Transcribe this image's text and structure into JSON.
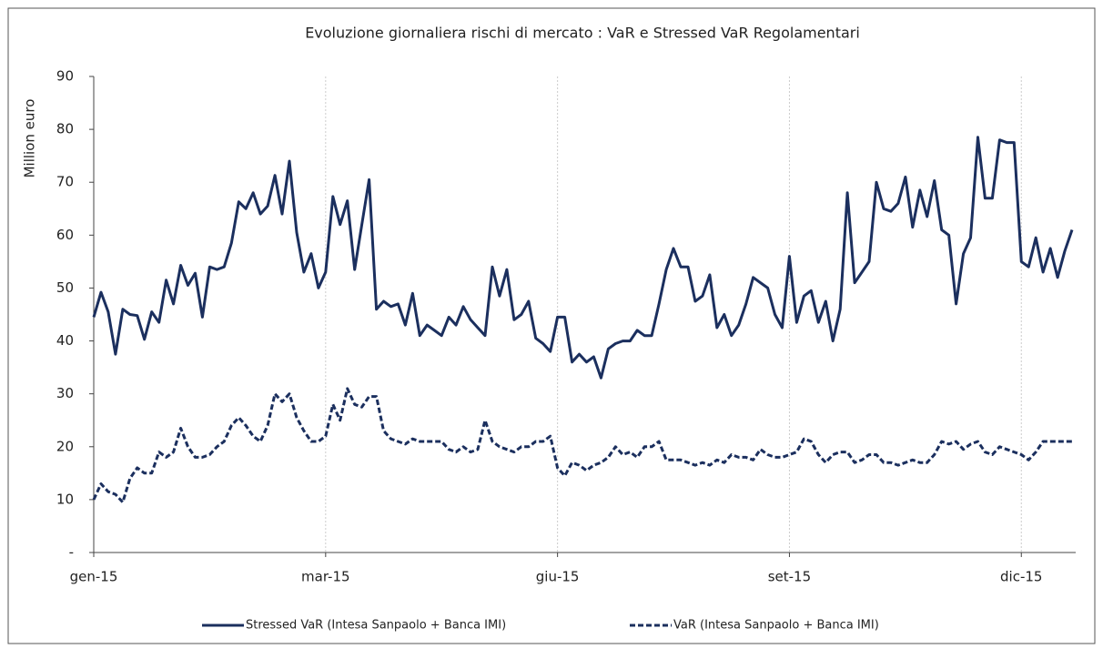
{
  "chart_data": {
    "type": "line",
    "title": "Evoluzione giornaliera rischi di mercato : VaR e Stressed VaR Regolamentari",
    "y_label": "Million euro",
    "categories": [
      "gen-15",
      null,
      null,
      null,
      null,
      null,
      null,
      null,
      null,
      null,
      null,
      null,
      null,
      null,
      null,
      null,
      null,
      null,
      null,
      null,
      null,
      null,
      null,
      null,
      null,
      null,
      null,
      null,
      null,
      null,
      null,
      null,
      "mar-15",
      null,
      null,
      null,
      null,
      null,
      null,
      null,
      null,
      null,
      null,
      null,
      null,
      null,
      null,
      null,
      null,
      null,
      null,
      null,
      null,
      null,
      null,
      null,
      null,
      null,
      null,
      null,
      null,
      null,
      null,
      null,
      "giu-15",
      null,
      null,
      null,
      null,
      null,
      null,
      null,
      null,
      null,
      null,
      null,
      null,
      null,
      null,
      null,
      null,
      null,
      null,
      null,
      null,
      null,
      null,
      null,
      null,
      null,
      null,
      null,
      null,
      null,
      null,
      null,
      "set-15",
      null,
      null,
      null,
      null,
      null,
      null,
      null,
      null,
      null,
      null,
      null,
      null,
      null,
      null,
      null,
      null,
      null,
      null,
      null,
      null,
      null,
      null,
      null,
      null,
      null,
      null,
      null,
      null,
      null,
      null,
      null,
      "dic-15",
      null,
      null,
      null,
      null,
      null,
      null,
      null
    ],
    "series": [
      {
        "name": "Stressed VaR (Intesa Sanpaolo + Banca IMI)",
        "color": "#1b2f5e",
        "dashed": false,
        "values": [
          44.5,
          49.2,
          45.5,
          37.5,
          46,
          45,
          44.8,
          40.3,
          45.5,
          43.5,
          51.5,
          47,
          54.3,
          50.5,
          52.8,
          44.5,
          54,
          53.5,
          54,
          58.5,
          66.3,
          65,
          68,
          64,
          65.5,
          71.3,
          64,
          74,
          60.5,
          53,
          56.5,
          50,
          53,
          67.3,
          62,
          66.5,
          53.5,
          62,
          70.5,
          46,
          47.5,
          46.5,
          47,
          43,
          49,
          41,
          43,
          42,
          41,
          44.5,
          43,
          46.5,
          44,
          42.5,
          41,
          54,
          48.5,
          53.5,
          44,
          45,
          47.5,
          40.5,
          39.5,
          38,
          44.5,
          44.5,
          36,
          37.5,
          36,
          37,
          33,
          38.5,
          39.5,
          40,
          40,
          42,
          41,
          41,
          47,
          53.5,
          57.5,
          54,
          54,
          47.5,
          48.5,
          52.5,
          42.5,
          45,
          41,
          43,
          47,
          52,
          51,
          50,
          45,
          42.5,
          56,
          43.5,
          48.5,
          49.5,
          43.5,
          47.5,
          40,
          46,
          68,
          51,
          53,
          55,
          70,
          65,
          64.5,
          66,
          71,
          61.5,
          68.5,
          63.5,
          70.3,
          61,
          60,
          47,
          56.5,
          59.5,
          78.5,
          67,
          67,
          78,
          77.5,
          77.5,
          55,
          54,
          59.5,
          53,
          57.5,
          52,
          57,
          61
        ]
      },
      {
        "name": "VaR (Intesa Sanpaolo + Banca IMI)",
        "color": "#1b2f5e",
        "dashed": true,
        "values": [
          10,
          13,
          11.5,
          11,
          9.5,
          14,
          16,
          15,
          15,
          19,
          18,
          19,
          23.5,
          20,
          18,
          18,
          18.5,
          20,
          21,
          24,
          25.5,
          24,
          22,
          21,
          24,
          30,
          28.5,
          30,
          25.5,
          23,
          21,
          21,
          22,
          28,
          25,
          31,
          28,
          27.5,
          29.5,
          29.5,
          23,
          21.5,
          21,
          20.5,
          21.5,
          21,
          21,
          21,
          21,
          19.5,
          19,
          20,
          19,
          19.5,
          25,
          21,
          20,
          19.5,
          19,
          20,
          20,
          21,
          21,
          22,
          16,
          14.5,
          17,
          16.5,
          15.5,
          16.5,
          17,
          18,
          20,
          18.5,
          19,
          18,
          20,
          20,
          21,
          17.5,
          17.5,
          17.5,
          17,
          16.5,
          17,
          16.5,
          17.5,
          17,
          18.5,
          18,
          18,
          17.5,
          19.5,
          18.5,
          18,
          18,
          18.5,
          19,
          21.5,
          21,
          18.5,
          17,
          18.5,
          19,
          19,
          17,
          17.5,
          18.5,
          18.5,
          17,
          17,
          16.5,
          17,
          17.5,
          17,
          17,
          18.5,
          21,
          20.5,
          21,
          19.5,
          20.5,
          21,
          19,
          18.5,
          20,
          19.5,
          19,
          18.5,
          17.5,
          19,
          21,
          21,
          21,
          21,
          21
        ]
      }
    ],
    "ylim": [
      0,
      90
    ],
    "yticks": [
      {
        "value": 0,
        "label": "-"
      },
      10,
      20,
      30,
      40,
      50,
      60,
      70,
      80,
      90
    ],
    "xgrid": true,
    "legend": "bottom"
  }
}
